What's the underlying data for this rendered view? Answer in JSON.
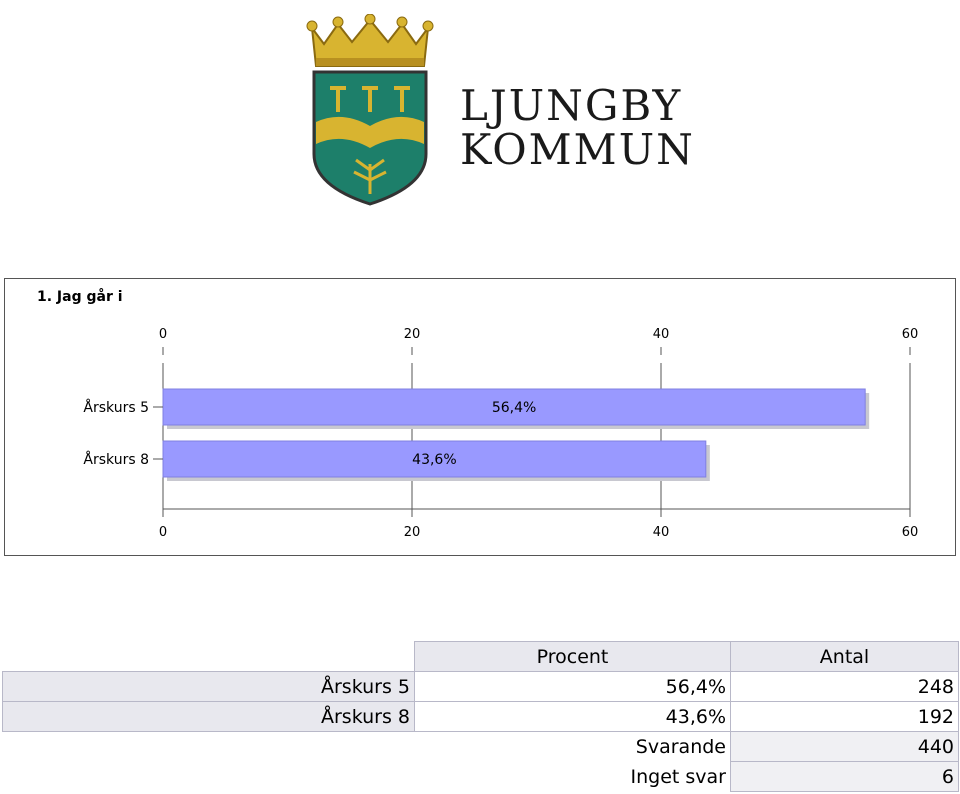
{
  "logo": {
    "line1": "LJUNGBY",
    "line2": "KOMMUN",
    "colors": {
      "gold": "#d8b430",
      "green": "#1d7f6a",
      "dark": "#2a2a2a"
    }
  },
  "chart_data": {
    "type": "bar",
    "orientation": "horizontal",
    "title": "1. Jag går i",
    "categories": [
      "Årskurs 5",
      "Årskurs 8"
    ],
    "values": [
      56.4,
      43.6
    ],
    "data_labels": [
      "56,4%",
      "43,6%"
    ],
    "xlim": [
      0,
      60
    ],
    "xticks": [
      0,
      20,
      40,
      60
    ],
    "grid": true,
    "bar_color": "#9999ff"
  },
  "table": {
    "headers": {
      "percent": "Procent",
      "count": "Antal"
    },
    "rows": [
      {
        "label": "Årskurs 5",
        "percent": "56,4%",
        "count": "248"
      },
      {
        "label": "Årskurs 8",
        "percent": "43,6%",
        "count": "192"
      }
    ],
    "totals": [
      {
        "label": "Svarande",
        "count": "440"
      },
      {
        "label": "Inget svar",
        "count": "6"
      }
    ]
  }
}
